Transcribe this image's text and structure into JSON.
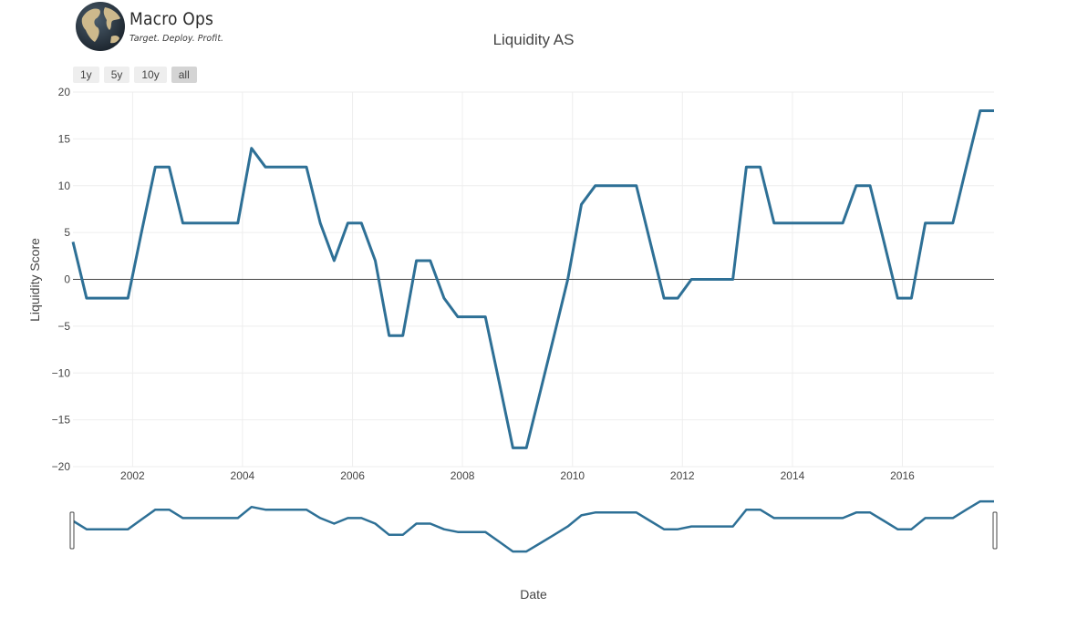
{
  "logo": {
    "brand": "Macro Ops",
    "tagline": "Target. Deploy. Profit."
  },
  "range_selector": {
    "buttons": [
      "1y",
      "5y",
      "10y",
      "all"
    ],
    "active": "all"
  },
  "colors": {
    "line": "#2e7096",
    "grid": "#eeeeee",
    "zero_line": "#444444",
    "button_bg": "#eeeeee",
    "button_active_bg": "#d4d4d4"
  },
  "chart_data": {
    "type": "line",
    "title": "Liquidity AS",
    "xlabel": "Date",
    "ylabel": "Liquidity Score",
    "xlim": [
      "2000-12-01",
      "2017-09-01"
    ],
    "ylim": [
      -20,
      20
    ],
    "x_ticks": [
      "2002",
      "2004",
      "2006",
      "2008",
      "2010",
      "2012",
      "2014",
      "2016"
    ],
    "y_ticks": [
      20,
      15,
      10,
      5,
      0,
      -5,
      -10,
      -15,
      -20
    ],
    "grid": true,
    "legend": "none",
    "range_slider": true,
    "series": [
      {
        "x": [
          "2000-12-01",
          "2001-03-01",
          "2001-06-01",
          "2001-09-01",
          "2001-12-01",
          "2002-03-01",
          "2002-06-01",
          "2002-09-01",
          "2002-12-01",
          "2003-03-01",
          "2003-06-01",
          "2003-09-01",
          "2003-12-01",
          "2004-03-01",
          "2004-06-01",
          "2004-09-01",
          "2004-12-01",
          "2005-03-01",
          "2005-06-01",
          "2005-09-01",
          "2005-12-01",
          "2006-03-01",
          "2006-06-01",
          "2006-09-01",
          "2006-12-01",
          "2007-03-01",
          "2007-06-01",
          "2007-09-01",
          "2007-12-01",
          "2008-03-01",
          "2008-06-01",
          "2008-09-01",
          "2008-12-01",
          "2009-03-01",
          "2009-06-01",
          "2009-09-01",
          "2009-12-01",
          "2010-03-01",
          "2010-06-01",
          "2010-09-01",
          "2010-12-01",
          "2011-03-01",
          "2011-06-01",
          "2011-09-01",
          "2011-12-01",
          "2012-03-01",
          "2012-06-01",
          "2012-09-01",
          "2012-12-01",
          "2013-03-01",
          "2013-06-01",
          "2013-09-01",
          "2013-12-01",
          "2014-03-01",
          "2014-06-01",
          "2014-09-01",
          "2014-12-01",
          "2015-03-01",
          "2015-06-01",
          "2015-09-01",
          "2015-12-01",
          "2016-03-01",
          "2016-06-01",
          "2016-09-01",
          "2016-12-01",
          "2017-03-01",
          "2017-06-01",
          "2017-09-01"
        ],
        "y": [
          4,
          -2,
          -2,
          -2,
          -2,
          5,
          12,
          12,
          6,
          6,
          6,
          6,
          6,
          14,
          12,
          12,
          12,
          12,
          6,
          2,
          6,
          6,
          2,
          -6,
          -6,
          2,
          2,
          -2,
          -4,
          -4,
          -4,
          -11,
          -18,
          -18,
          -12,
          -6,
          0,
          8,
          10,
          10,
          10,
          10,
          4,
          -2,
          -2,
          0,
          0,
          0,
          0,
          12,
          12,
          6,
          6,
          6,
          6,
          6,
          6,
          10,
          10,
          4,
          -2,
          -2,
          6,
          6,
          6,
          12,
          18,
          18
        ]
      }
    ]
  }
}
